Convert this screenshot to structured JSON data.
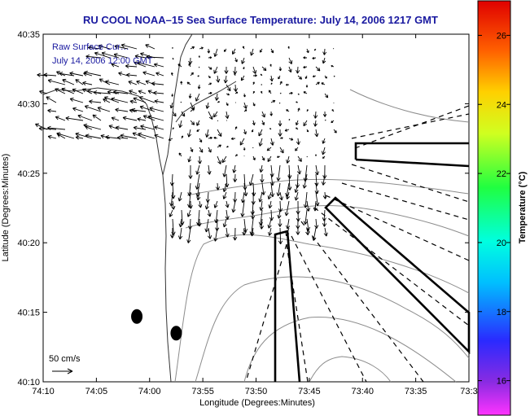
{
  "chart_data": {
    "type": "quiver",
    "title": "RU COOL  NOAA–15  Sea Surface Temperature:  July 14, 2006 1217 GMT",
    "title_color": "#1a1aa0",
    "xlabel": "Longitude (Degrees:Minutes)",
    "ylabel": "Latitude (Degrees:Minutes)",
    "x_ticks": [
      "74:10",
      "74:05",
      "74:00",
      "73:55",
      "73:50",
      "73:45",
      "73:40",
      "73:35",
      "73:3"
    ],
    "y_ticks": [
      "40:35",
      "40:30",
      "40:25",
      "40:20",
      "40:15",
      "40:10"
    ],
    "xlim_minutes_west": [
      10,
      -30
    ],
    "ylim_minutes_north": [
      10,
      35
    ],
    "annotation_lines": [
      "Raw Surface Cur…",
      "July 14, 2006 12:00 GMT"
    ],
    "annotation_color": "#1a1aa0",
    "scale_label": "50 cm/s",
    "colorbar": {
      "label": "Temperature (°C)",
      "ticks": [
        26,
        24,
        22,
        20,
        18,
        16
      ],
      "range": [
        15,
        27
      ]
    },
    "markers": [
      {
        "lon_min_w": 1.2,
        "lat_min_n": 14.7
      },
      {
        "lon_min_w": -2.5,
        "lat_min_n": 13.5
      }
    ],
    "grid": false
  }
}
